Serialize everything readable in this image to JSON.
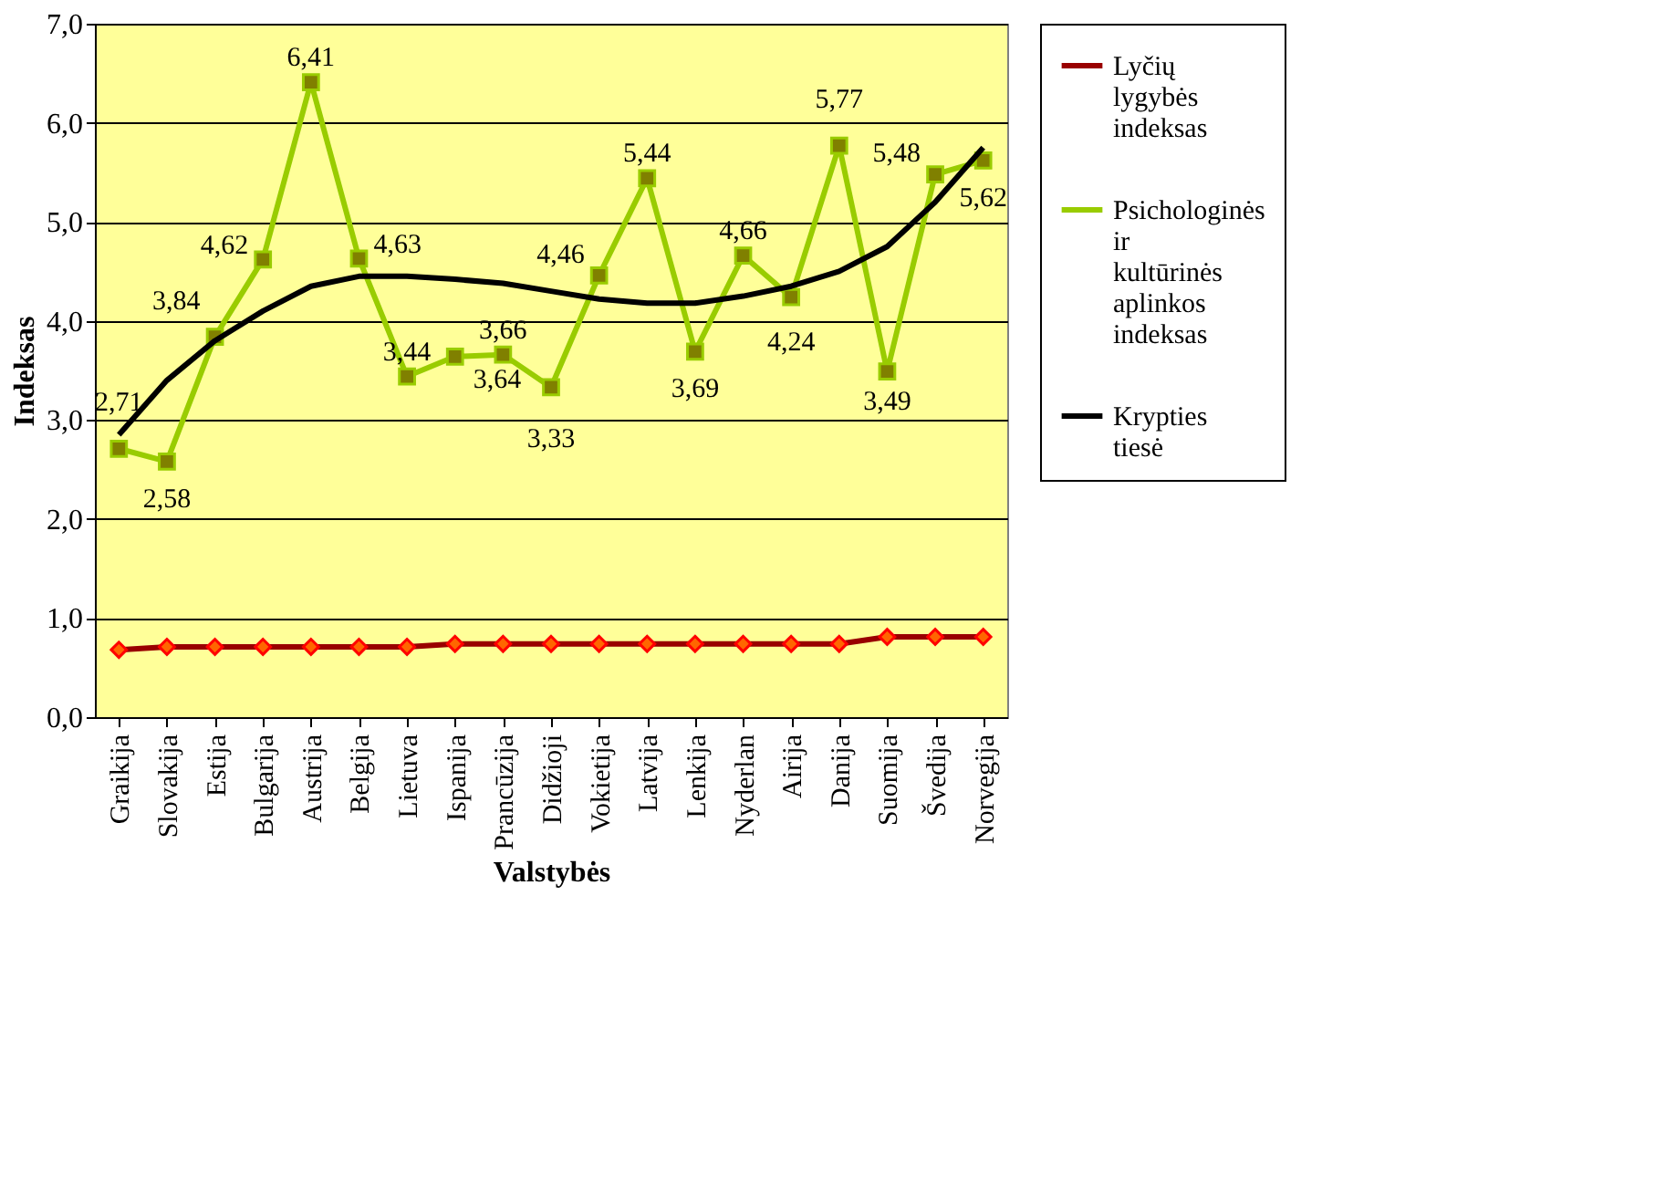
{
  "chart_data": {
    "type": "line",
    "xlabel": "Valstybės",
    "ylabel": "Indeksas",
    "categories": [
      "Graikija",
      "Slovakija",
      "Estija",
      "Bulgarija",
      "Austrija",
      "Belgija",
      "Lietuva",
      "Ispanija",
      "Prancūzija",
      "Didžioji",
      "Vokietija",
      "Latvija",
      "Lenkija",
      "Nyderlan",
      "Airija",
      "Danija",
      "Suomija",
      "Švedija",
      "Norvegija"
    ],
    "series": [
      {
        "name": "Lyčių lygybės indeksas",
        "color": "#990000",
        "marker": "diamond",
        "values": [
          0.68,
          0.71,
          0.71,
          0.71,
          0.71,
          0.71,
          0.71,
          0.74,
          0.74,
          0.74,
          0.74,
          0.74,
          0.74,
          0.74,
          0.74,
          0.74,
          0.81,
          0.81,
          0.81
        ]
      },
      {
        "name": "Psichologinės ir kultūrinės aplinkos indeksas",
        "color": "#99cc00",
        "marker": "square",
        "values": [
          2.71,
          2.58,
          3.84,
          4.62,
          6.41,
          4.63,
          3.44,
          3.64,
          3.66,
          3.33,
          4.46,
          5.44,
          3.69,
          4.66,
          4.24,
          5.77,
          3.49,
          5.48,
          5.62
        ],
        "value_labels": [
          "2,71",
          "2,58",
          "3,84",
          "4,62",
          "6,41",
          "4,63",
          "3,44",
          "3,64",
          "3,66",
          "3,33",
          "4,46",
          "5,44",
          "3,69",
          "4,66",
          "4,24",
          "5,77",
          "3,49",
          "5,48",
          "5,62"
        ]
      },
      {
        "name": "Krypties tiesė",
        "color": "#000000",
        "marker": "none",
        "values": [
          2.85,
          3.4,
          3.8,
          4.1,
          4.35,
          4.45,
          4.45,
          4.42,
          4.38,
          4.3,
          4.22,
          4.18,
          4.18,
          4.25,
          4.35,
          4.5,
          4.75,
          5.2,
          5.75
        ]
      }
    ],
    "ylim": [
      0,
      7
    ],
    "yticks": [
      {
        "value": 0,
        "label": "0,0"
      },
      {
        "value": 1,
        "label": "1,0"
      },
      {
        "value": 2,
        "label": "2,0"
      },
      {
        "value": 3,
        "label": "3,0"
      },
      {
        "value": 4,
        "label": "4,0"
      },
      {
        "value": 5,
        "label": "5,0"
      },
      {
        "value": 6,
        "label": "6,0"
      },
      {
        "value": 7,
        "label": "7,0"
      }
    ],
    "grid": "y",
    "legend": "right",
    "line_style": "solid"
  }
}
